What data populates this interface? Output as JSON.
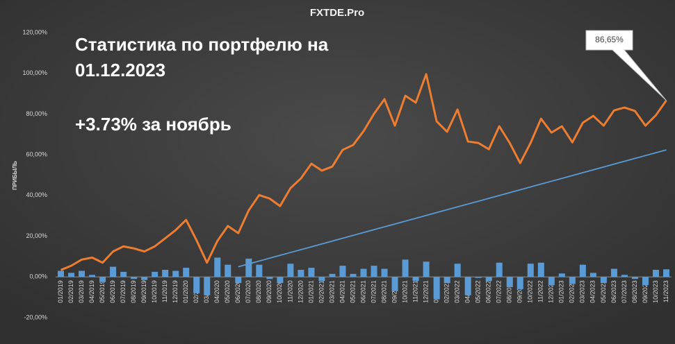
{
  "chart_data": {
    "type": "combo",
    "title": "FXTDE.Pro",
    "annotations": [
      "Статистика по портфелю на",
      "01.12.2023",
      "+3.73% за ноябрь"
    ],
    "ylabel": "ПРИБЫЛЬ",
    "categories": [
      "01/2019",
      "02/2019",
      "03/2019",
      "04/2019",
      "05/2019",
      "06/2019",
      "07/2019",
      "08/2019",
      "09/2019",
      "10/2019",
      "11/2019",
      "12/2019",
      "01/2020",
      "02/2020",
      "03/2020",
      "04/2020",
      "05/2020",
      "06/2020",
      "07/2020",
      "08/2020",
      "09/2020",
      "10/2020",
      "11/2020",
      "12/2020",
      "01/2021",
      "02/2021",
      "03/2021",
      "04/2021",
      "05/2021",
      "06/2021",
      "07/2021",
      "08/2021",
      "09/2021",
      "10/2021",
      "11/2021",
      "12/2021",
      "01/2022",
      "02/2022",
      "03/2022",
      "04/2022",
      "05/2022",
      "06/2022",
      "07/2022",
      "08/2022",
      "09/2022",
      "10/2022",
      "11/2022",
      "12/2022",
      "01/2023",
      "02/2023",
      "03/2023",
      "04/2023",
      "05/2023",
      "06/2023",
      "07/2023",
      "08/2023",
      "09/2023",
      "10/2023",
      "11/2023"
    ],
    "series": [
      {
        "type": "bar",
        "color": "#5b9bd5",
        "values": [
          3,
          2,
          3,
          1,
          -2.5,
          5,
          2.5,
          -1,
          -1.5,
          2.5,
          3.5,
          3,
          4.5,
          -8,
          -9,
          9.5,
          6,
          -3,
          9,
          6,
          -1,
          -3,
          6.5,
          3.5,
          4.5,
          -2,
          1.5,
          5.5,
          1.5,
          4,
          5.5,
          4,
          -7,
          8.5,
          -2,
          7.5,
          -11,
          -3,
          6.5,
          -9,
          -0.5,
          -2,
          7,
          -5,
          -6,
          6.5,
          7,
          -4,
          1.7,
          -3.5,
          6,
          2,
          -3,
          4,
          1,
          -1,
          -4,
          3.5,
          3.73
        ]
      },
      {
        "type": "line",
        "color": "#ed7d31",
        "values": [
          3.4,
          5.5,
          8.5,
          9.5,
          7,
          12.5,
          15,
          14,
          12.5,
          15,
          19,
          23,
          28,
          18,
          7,
          17.7,
          25,
          21.5,
          32.7,
          40.2,
          38.5,
          34.8,
          43.6,
          48.4,
          55.6,
          52.2,
          54.2,
          62.4,
          64.8,
          71.6,
          80.1,
          87.3,
          74.3,
          89,
          85.6,
          99.6,
          76.4,
          71.3,
          82.2,
          66.5,
          65.8,
          62.7,
          74,
          65.8,
          55.9,
          65.8,
          77.7,
          70.9,
          74,
          66.1,
          75.7,
          79.1,
          74.3,
          81.8,
          83.2,
          81.5,
          74.3,
          79.4,
          86.65
        ],
        "value_labels": [
          null,
          null,
          null,
          null,
          null,
          null,
          null,
          null,
          null,
          null,
          null,
          null,
          null,
          null,
          null,
          null,
          null,
          null,
          null,
          null,
          null,
          null,
          null,
          null,
          null,
          null,
          null,
          null,
          null,
          null,
          null,
          null,
          null,
          null,
          null,
          null,
          null,
          null,
          null,
          null,
          null,
          null,
          null,
          null,
          null,
          null,
          null,
          null,
          null,
          null,
          null,
          null,
          null,
          null,
          null,
          null,
          null,
          null,
          "86,65%"
        ]
      },
      {
        "type": "line",
        "color": "#5b9bd5",
        "values": [
          null,
          null,
          null,
          null,
          null,
          null,
          null,
          null,
          null,
          null,
          null,
          null,
          null,
          null,
          null,
          null,
          null,
          5,
          6.4,
          7.8,
          9.2,
          10.6,
          12,
          13.4,
          14.8,
          16.2,
          17.6,
          19,
          20.4,
          21.8,
          23.2,
          24.6,
          26,
          27.4,
          28.8,
          30.2,
          31.6,
          33,
          34.4,
          35.8,
          37.2,
          38.6,
          40,
          41.4,
          42.8,
          44.2,
          45.6,
          47,
          48.4,
          49.8,
          51.2,
          52.6,
          54,
          55.4,
          56.8,
          58.2,
          59.6,
          61,
          62.4
        ]
      }
    ],
    "ylim": [
      -20,
      120
    ],
    "yticks": [
      {
        "value": -20,
        "label": "-20,00%"
      },
      {
        "value": 0,
        "label": "0,00%"
      },
      {
        "value": 20,
        "label": "20,00%"
      },
      {
        "value": 40,
        "label": "40,00%"
      },
      {
        "value": 60,
        "label": "60,00%"
      },
      {
        "value": 80,
        "label": "80,00%"
      },
      {
        "value": 100,
        "label": "100,00%"
      },
      {
        "value": 120,
        "label": "120,00%"
      }
    ],
    "grid": false
  }
}
